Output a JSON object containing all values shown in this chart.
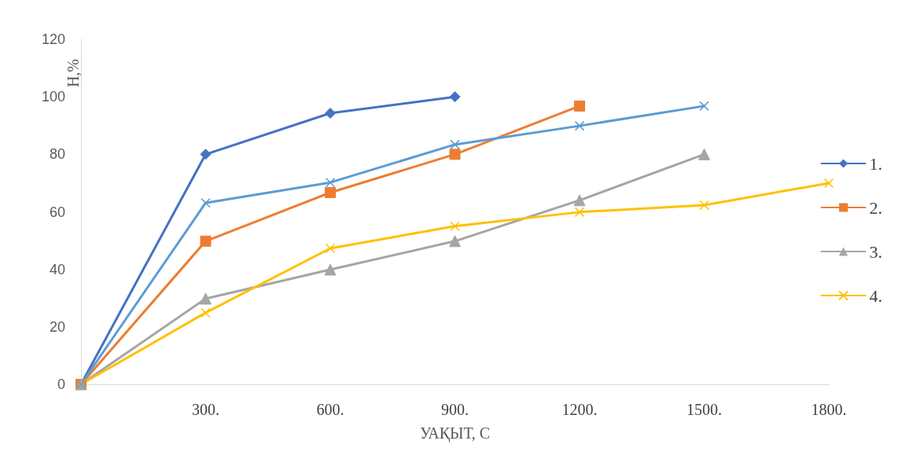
{
  "chart_data": {
    "type": "line",
    "xlabel": "УАҚЫТ, С",
    "ylabel": "Н,%",
    "categories": [
      null,
      "300.",
      "600.",
      "900.",
      "1200.",
      "1500.",
      "1800."
    ],
    "ylim": [
      0,
      120
    ],
    "yticks": [
      0,
      20,
      40,
      60,
      80,
      100,
      120
    ],
    "grid": false,
    "legend": "right",
    "series": [
      {
        "name": "1.",
        "color": "#4472c4",
        "marker": "diamond",
        "values": [
          0,
          80,
          94.3,
          100,
          null,
          null,
          null
        ]
      },
      {
        "name": "2.",
        "color": "#ed7d31",
        "marker": "square",
        "values": [
          0,
          49.8,
          66.7,
          80,
          96.8,
          null,
          null
        ]
      },
      {
        "name": "3.",
        "color": "#a5a5a5",
        "marker": "triangle",
        "values": [
          0,
          29.8,
          39.9,
          49.8,
          64,
          80,
          null
        ]
      },
      {
        "name": "4.",
        "color": "#ffc000",
        "marker": "cross",
        "values": [
          0,
          24.9,
          47.3,
          55,
          59.9,
          62.3,
          70
        ]
      },
      {
        "color": "#5b9bd5",
        "marker": "cross",
        "values": [
          0,
          63.1,
          70.2,
          83.4,
          89.9,
          96.8,
          null
        ]
      }
    ]
  }
}
